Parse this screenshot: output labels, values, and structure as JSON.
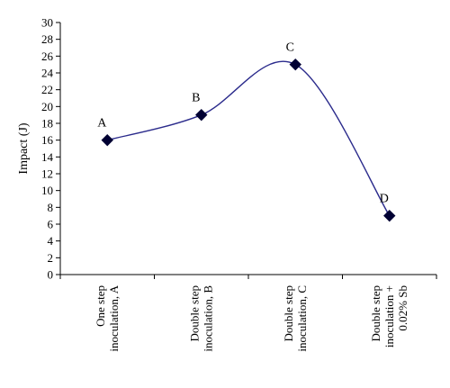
{
  "chart_data": {
    "type": "line",
    "title": "",
    "xlabel": "",
    "ylabel": "Impact (J)",
    "ylim": [
      0,
      30
    ],
    "ytick_step": 2,
    "grid": false,
    "smooth": true,
    "categories": [
      [
        "One step",
        "inoculation, A"
      ],
      [
        "Double step",
        "inoculation, B"
      ],
      [
        "Double step",
        "inoculation, C"
      ],
      [
        "Double step",
        "inoculation +",
        "0.02% Sb"
      ]
    ],
    "series": [
      {
        "values": [
          16,
          19,
          25,
          7
        ],
        "point_labels": [
          "A",
          "B",
          "C",
          "D"
        ],
        "line_color": "#2b2b8c",
        "marker_color": "#000033",
        "marker": "diamond"
      }
    ]
  }
}
